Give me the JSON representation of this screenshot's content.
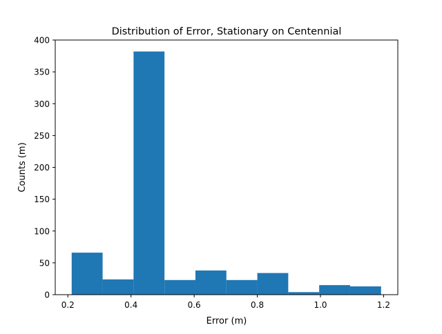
{
  "chart_data": {
    "type": "bar",
    "title": "Distribution of Error, Stationary on Centennial",
    "xlabel": "Error (m)",
    "ylabel": "Counts (m)",
    "xlim": [
      0.16,
      1.245
    ],
    "ylim": [
      0,
      400
    ],
    "xticks": [
      0.2,
      0.4,
      0.6,
      0.8,
      1.0,
      1.2
    ],
    "xtick_labels": [
      "0.2",
      "0.4",
      "0.6",
      "0.8",
      "1.0",
      "1.2"
    ],
    "yticks": [
      0,
      50,
      100,
      150,
      200,
      250,
      300,
      350,
      400
    ],
    "ytick_labels": [
      "0",
      "50",
      "100",
      "150",
      "200",
      "250",
      "300",
      "350",
      "400"
    ],
    "bins": [
      {
        "x0": 0.212,
        "x1": 0.31,
        "count": 66
      },
      {
        "x0": 0.31,
        "x1": 0.408,
        "count": 24
      },
      {
        "x0": 0.408,
        "x1": 0.506,
        "count": 382
      },
      {
        "x0": 0.506,
        "x1": 0.604,
        "count": 23
      },
      {
        "x0": 0.604,
        "x1": 0.702,
        "count": 38
      },
      {
        "x0": 0.702,
        "x1": 0.8,
        "count": 23
      },
      {
        "x0": 0.8,
        "x1": 0.898,
        "count": 34
      },
      {
        "x0": 0.898,
        "x1": 0.996,
        "count": 4
      },
      {
        "x0": 0.996,
        "x1": 1.094,
        "count": 15
      },
      {
        "x0": 1.094,
        "x1": 1.192,
        "count": 13
      }
    ],
    "bar_color": "#1f77b4",
    "grid": false,
    "legend": "none"
  }
}
